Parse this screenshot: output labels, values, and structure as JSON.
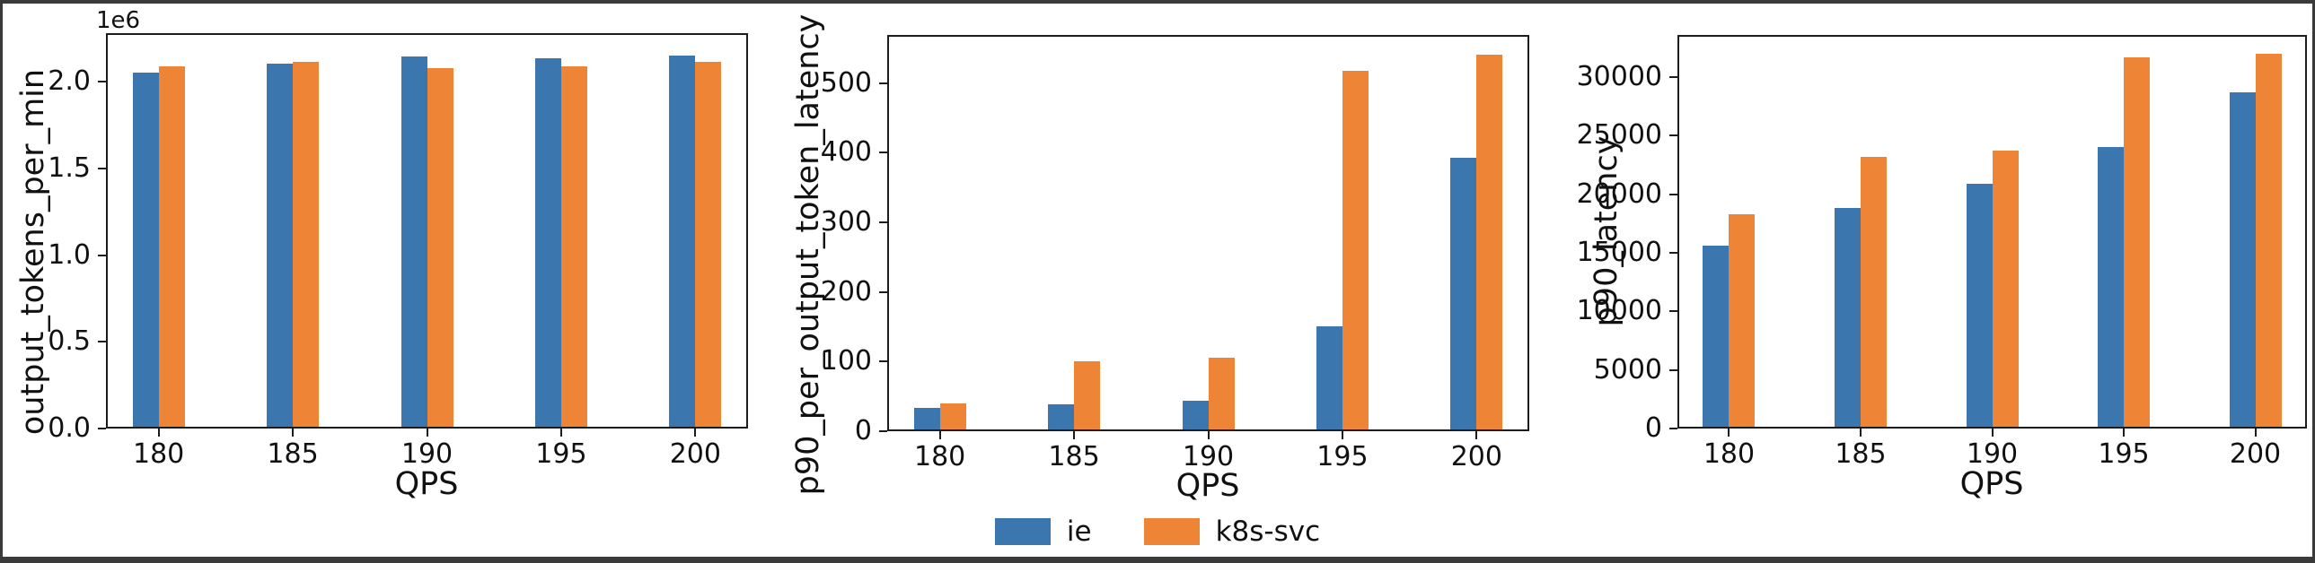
{
  "figure": {
    "background_color": "#ffffff",
    "frame_color": "#3a3a3a",
    "text_color": "#111111",
    "legend_items": [
      {
        "label": "ie",
        "color": "#3b76af"
      },
      {
        "label": "k8s-svc",
        "color": "#ee8435"
      }
    ]
  },
  "chart_data": [
    {
      "type": "bar",
      "title": "",
      "ylabel": "output_tokens_per_min",
      "xlabel": "QPS",
      "y_offset_label": "1e6",
      "categories": [
        "180",
        "185",
        "190",
        "195",
        "200"
      ],
      "series": [
        {
          "name": "ie",
          "color": "#3b76af",
          "values": [
            2050000,
            2105000,
            2143000,
            2136000,
            2150000
          ]
        },
        {
          "name": "k8s-svc",
          "color": "#ee8435",
          "values": [
            2090000,
            2112000,
            2079000,
            2091000,
            2115000
          ]
        }
      ],
      "ylim": [
        0,
        2280000
      ],
      "yticks": [
        0,
        500000,
        1000000,
        1500000,
        2000000
      ],
      "ytick_labels": [
        "0.0",
        "0.5",
        "1.0",
        "1.5",
        "2.0"
      ],
      "grid": false,
      "legend_position": "none"
    },
    {
      "type": "bar",
      "title": "",
      "ylabel": "p90_per_output_token_latency",
      "xlabel": "QPS",
      "y_offset_label": "",
      "categories": [
        "180",
        "185",
        "190",
        "195",
        "200"
      ],
      "series": [
        {
          "name": "ie",
          "color": "#3b76af",
          "values": [
            33,
            38,
            44,
            150,
            393
          ]
        },
        {
          "name": "k8s-svc",
          "color": "#ee8435",
          "values": [
            40,
            100,
            105,
            518,
            541
          ]
        }
      ],
      "ylim": [
        0,
        569
      ],
      "yticks": [
        0,
        100,
        200,
        300,
        400,
        500
      ],
      "ytick_labels": [
        "0",
        "100",
        "200",
        "300",
        "400",
        "500"
      ],
      "grid": false,
      "legend_position": "bottom-center"
    },
    {
      "type": "bar",
      "title": "",
      "ylabel": "p90_latency",
      "xlabel": "QPS",
      "y_offset_label": "",
      "categories": [
        "180",
        "185",
        "190",
        "195",
        "200"
      ],
      "series": [
        {
          "name": "ie",
          "color": "#3b76af",
          "values": [
            15600,
            18800,
            20900,
            24000,
            28700
          ]
        },
        {
          "name": "k8s-svc",
          "color": "#ee8435",
          "values": [
            18300,
            23200,
            23700,
            31700,
            32000
          ]
        }
      ],
      "ylim": [
        0,
        33600
      ],
      "yticks": [
        0,
        5000,
        10000,
        15000,
        20000,
        25000,
        30000
      ],
      "ytick_labels": [
        "0",
        "5000",
        "10000",
        "15000",
        "20000",
        "25000",
        "30000"
      ],
      "grid": false,
      "legend_position": "none"
    }
  ]
}
